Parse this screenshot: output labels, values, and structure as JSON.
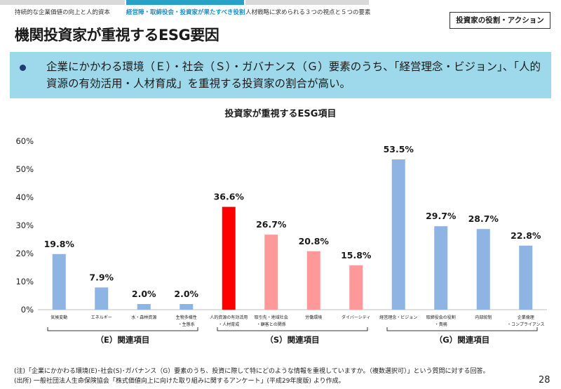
{
  "nav": {
    "tabs": [
      {
        "label": "持続的な企業価値の向上と人的資本",
        "active": false
      },
      {
        "label": "経営陣・取締役会・投資家が果たすべき役割",
        "active": true
      },
      {
        "label": "人材戦略に求められる３つの視点と５つの要素",
        "active": false
      }
    ]
  },
  "role_badge": "投資家の役割・アクション",
  "page_title": "機関投資家が重視するESG要因",
  "summary": "企業にかかわる環境（Ｅ）・社会（Ｓ）・ガバナンス（Ｇ）要素のうち、「経営理念・ビジョン」、「人的資源の有効活用・人材育成」を重視する投資家の割合が高い。",
  "colors": {
    "E": "#8db4e2",
    "S": "#ff9999",
    "S_highlight": "#ff0000",
    "G": "#8db4e2"
  },
  "chart_data": {
    "type": "bar",
    "title": "投資家が重視するESG項目",
    "ylim": [
      0,
      60
    ],
    "yticks": [
      "0%",
      "10%",
      "20%",
      "30%",
      "40%",
      "50%",
      "60%"
    ],
    "categories": [
      {
        "label": [
          "気候変動"
        ],
        "value": 19.8,
        "value_label": "19.8%",
        "group": "E"
      },
      {
        "label": [
          "エネルギー"
        ],
        "value": 7.9,
        "value_label": "7.9%",
        "group": "E"
      },
      {
        "label": [
          "水・森林資源"
        ],
        "value": 2.0,
        "value_label": "2.0%",
        "group": "E"
      },
      {
        "label": [
          "生物多様性",
          "・生態系"
        ],
        "value": 2.0,
        "value_label": "2.0%",
        "group": "E"
      },
      {
        "label": [
          "人的資源の有効活用",
          "・人材育成"
        ],
        "value": 36.6,
        "value_label": "36.6%",
        "group": "S",
        "highlight": true
      },
      {
        "label": [
          "取引先・地域社会",
          "・顧客との関係"
        ],
        "value": 26.7,
        "value_label": "26.7%",
        "group": "S"
      },
      {
        "label": [
          "労働環境"
        ],
        "value": 20.8,
        "value_label": "20.8%",
        "group": "S"
      },
      {
        "label": [
          "ダイバーシティ"
        ],
        "value": 15.8,
        "value_label": "15.8%",
        "group": "S"
      },
      {
        "label": [
          "経営理念・ビジョン"
        ],
        "value": 53.5,
        "value_label": "53.5%",
        "group": "G"
      },
      {
        "label": [
          "取締役会の役割",
          "・責務"
        ],
        "value": 29.7,
        "value_label": "29.7%",
        "group": "G"
      },
      {
        "label": [
          "内部統制"
        ],
        "value": 28.7,
        "value_label": "28.7%",
        "group": "G"
      },
      {
        "label": [
          "企業倫理",
          "・コンプライアンス"
        ],
        "value": 22.8,
        "value_label": "22.8%",
        "group": "G"
      }
    ],
    "groups": [
      {
        "key": "E",
        "label": "（E）関連項目"
      },
      {
        "key": "S",
        "label": "（S）関連項目"
      },
      {
        "key": "G",
        "label": "（G）関連項目"
      }
    ]
  },
  "notes": [
    "(注)「企業にかかわる環境(E)･社会(S)･ガバナンス（G）要素のうち、投資に際して特にどのような情報を重視していますか。（複数選択可）」という質問に対する回答。",
    "(出所) 一般社団法人生命保険協会「株式価値向上に向けた取り組みに関するアンケート」(平成29年度版) より作成。"
  ],
  "page_number": "28"
}
